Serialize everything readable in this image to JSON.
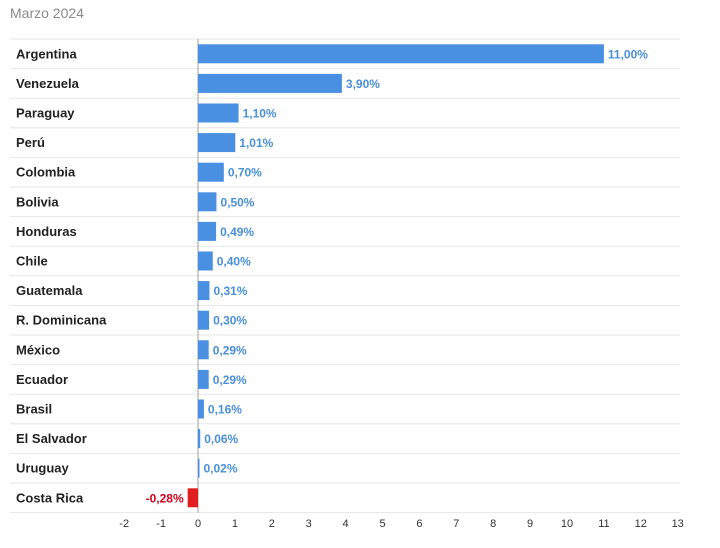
{
  "header": {
    "subtitle": "Marzo 2024"
  },
  "colors": {
    "positive": "#4a90e2",
    "negative": "#e02020",
    "positive_label": "#4a90d9",
    "negative_label": "#d0021b",
    "grid": "#e6e6e6",
    "axis": "#a0a0a0"
  },
  "chart_data": {
    "type": "bar",
    "orientation": "horizontal",
    "title": "",
    "subtitle": "Marzo 2024",
    "xlabel": "",
    "ylabel": "",
    "xlim": [
      -2,
      13
    ],
    "xticks": [
      -2,
      -1,
      0,
      1,
      2,
      3,
      4,
      5,
      6,
      7,
      8,
      9,
      10,
      11,
      12,
      13
    ],
    "grid": "horizontal row separators",
    "categories": [
      "Argentina",
      "Venezuela",
      "Paraguay",
      "Perú",
      "Colombia",
      "Bolivia",
      "Honduras",
      "Chile",
      "Guatemala",
      "R. Dominicana",
      "México",
      "Ecuador",
      "Brasil",
      "El Salvador",
      "Uruguay",
      "Costa Rica"
    ],
    "values": [
      11.0,
      3.9,
      1.1,
      1.01,
      0.7,
      0.5,
      0.49,
      0.4,
      0.31,
      0.3,
      0.29,
      0.29,
      0.16,
      0.06,
      0.02,
      -0.28
    ],
    "data_labels": [
      "11,00%",
      "3,90%",
      "1,10%",
      "1,01%",
      "0,70%",
      "0,50%",
      "0,49%",
      "0,40%",
      "0,31%",
      "0,30%",
      "0,29%",
      "0,29%",
      "0,16%",
      "0,06%",
      "0,02%",
      "-0,28%"
    ]
  }
}
